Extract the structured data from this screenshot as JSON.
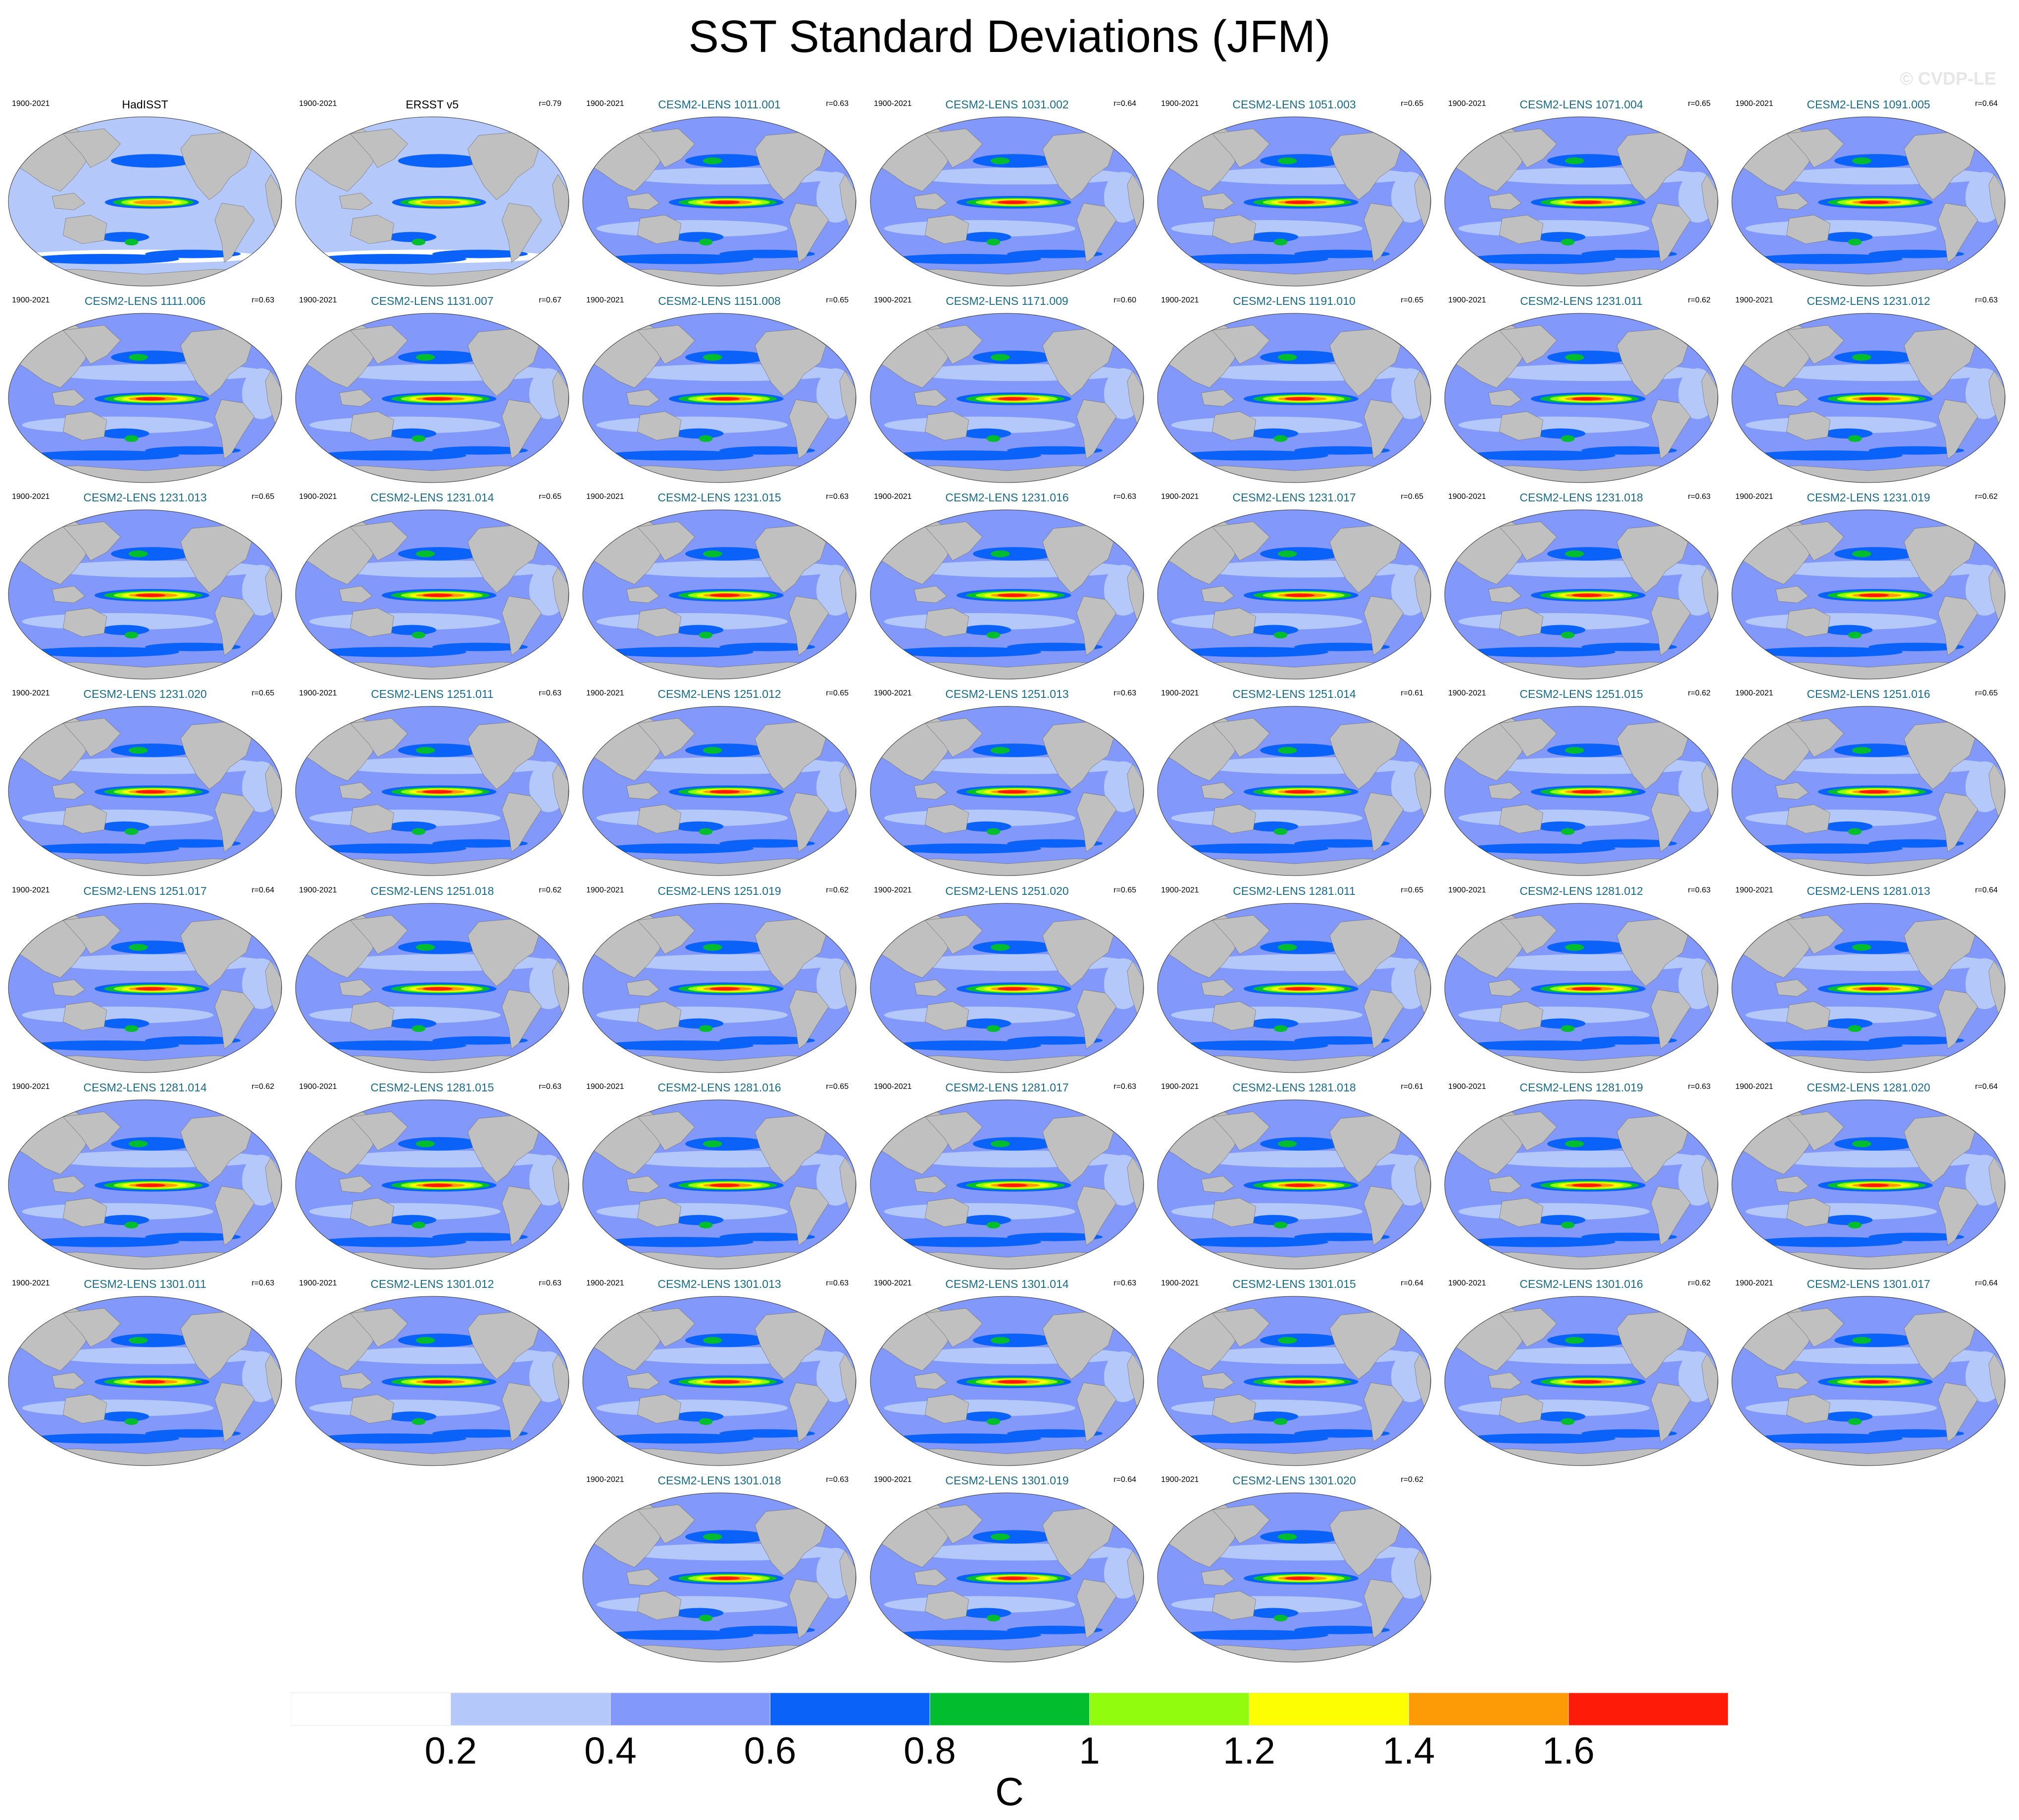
{
  "title": "SST Standard Deviations (JFM)",
  "watermark": "© CVDP-LE",
  "colors": {
    "ocean_bins": [
      "#ffffff",
      "#b4c8fa",
      "#8299fb",
      "#0b62f8",
      "#02be2e",
      "#92fc0e",
      "#fefe02",
      "#fd9b06",
      "#fe1b08"
    ],
    "land": "#c0c0c0",
    "model_title": "#1a6b8a"
  },
  "chart_data": {
    "type": "heatmap",
    "variable": "SST Standard Deviations",
    "season": "JFM",
    "colorbar": {
      "levels": [
        0.2,
        0.4,
        0.6,
        0.8,
        1,
        1.2,
        1.4,
        1.6
      ],
      "tick_labels": [
        "0.2",
        "0.4",
        "0.6",
        "0.8",
        "1",
        "1.2",
        "1.4",
        "1.6"
      ],
      "units": "C"
    },
    "panels": [
      {
        "name": "HadISST",
        "period": "1900-2021",
        "r": "",
        "observed": true
      },
      {
        "name": "ERSST v5",
        "period": "1900-2021",
        "r": "r=0.79",
        "observed": true
      },
      {
        "name": "CESM2-LENS 1011.001",
        "period": "1900-2021",
        "r": "r=0.63"
      },
      {
        "name": "CESM2-LENS 1031.002",
        "period": "1900-2021",
        "r": "r=0.64"
      },
      {
        "name": "CESM2-LENS 1051.003",
        "period": "1900-2021",
        "r": "r=0.65"
      },
      {
        "name": "CESM2-LENS 1071.004",
        "period": "1900-2021",
        "r": "r=0.65"
      },
      {
        "name": "CESM2-LENS 1091.005",
        "period": "1900-2021",
        "r": "r=0.64"
      },
      {
        "name": "CESM2-LENS 1111.006",
        "period": "1900-2021",
        "r": "r=0.63"
      },
      {
        "name": "CESM2-LENS 1131.007",
        "period": "1900-2021",
        "r": "r=0.67"
      },
      {
        "name": "CESM2-LENS 1151.008",
        "period": "1900-2021",
        "r": "r=0.65"
      },
      {
        "name": "CESM2-LENS 1171.009",
        "period": "1900-2021",
        "r": "r=0.60"
      },
      {
        "name": "CESM2-LENS 1191.010",
        "period": "1900-2021",
        "r": "r=0.65"
      },
      {
        "name": "CESM2-LENS 1231.011",
        "period": "1900-2021",
        "r": "r=0.62"
      },
      {
        "name": "CESM2-LENS 1231.012",
        "period": "1900-2021",
        "r": "r=0.63"
      },
      {
        "name": "CESM2-LENS 1231.013",
        "period": "1900-2021",
        "r": "r=0.65"
      },
      {
        "name": "CESM2-LENS 1231.014",
        "period": "1900-2021",
        "r": "r=0.65"
      },
      {
        "name": "CESM2-LENS 1231.015",
        "period": "1900-2021",
        "r": "r=0.63"
      },
      {
        "name": "CESM2-LENS 1231.016",
        "period": "1900-2021",
        "r": "r=0.63"
      },
      {
        "name": "CESM2-LENS 1231.017",
        "period": "1900-2021",
        "r": "r=0.65"
      },
      {
        "name": "CESM2-LENS 1231.018",
        "period": "1900-2021",
        "r": "r=0.63"
      },
      {
        "name": "CESM2-LENS 1231.019",
        "period": "1900-2021",
        "r": "r=0.62"
      },
      {
        "name": "CESM2-LENS 1231.020",
        "period": "1900-2021",
        "r": "r=0.65"
      },
      {
        "name": "CESM2-LENS 1251.011",
        "period": "1900-2021",
        "r": "r=0.63"
      },
      {
        "name": "CESM2-LENS 1251.012",
        "period": "1900-2021",
        "r": "r=0.65"
      },
      {
        "name": "CESM2-LENS 1251.013",
        "period": "1900-2021",
        "r": "r=0.63"
      },
      {
        "name": "CESM2-LENS 1251.014",
        "period": "1900-2021",
        "r": "r=0.61"
      },
      {
        "name": "CESM2-LENS 1251.015",
        "period": "1900-2021",
        "r": "r=0.62"
      },
      {
        "name": "CESM2-LENS 1251.016",
        "period": "1900-2021",
        "r": "r=0.65"
      },
      {
        "name": "CESM2-LENS 1251.017",
        "period": "1900-2021",
        "r": "r=0.64"
      },
      {
        "name": "CESM2-LENS 1251.018",
        "period": "1900-2021",
        "r": "r=0.62"
      },
      {
        "name": "CESM2-LENS 1251.019",
        "period": "1900-2021",
        "r": "r=0.62"
      },
      {
        "name": "CESM2-LENS 1251.020",
        "period": "1900-2021",
        "r": "r=0.65"
      },
      {
        "name": "CESM2-LENS 1281.011",
        "period": "1900-2021",
        "r": "r=0.65"
      },
      {
        "name": "CESM2-LENS 1281.012",
        "period": "1900-2021",
        "r": "r=0.63"
      },
      {
        "name": "CESM2-LENS 1281.013",
        "period": "1900-2021",
        "r": "r=0.64"
      },
      {
        "name": "CESM2-LENS 1281.014",
        "period": "1900-2021",
        "r": "r=0.62"
      },
      {
        "name": "CESM2-LENS 1281.015",
        "period": "1900-2021",
        "r": "r=0.63"
      },
      {
        "name": "CESM2-LENS 1281.016",
        "period": "1900-2021",
        "r": "r=0.65"
      },
      {
        "name": "CESM2-LENS 1281.017",
        "period": "1900-2021",
        "r": "r=0.63"
      },
      {
        "name": "CESM2-LENS 1281.018",
        "period": "1900-2021",
        "r": "r=0.61"
      },
      {
        "name": "CESM2-LENS 1281.019",
        "period": "1900-2021",
        "r": "r=0.63"
      },
      {
        "name": "CESM2-LENS 1281.020",
        "period": "1900-2021",
        "r": "r=0.64"
      },
      {
        "name": "CESM2-LENS 1301.011",
        "period": "1900-2021",
        "r": "r=0.63"
      },
      {
        "name": "CESM2-LENS 1301.012",
        "period": "1900-2021",
        "r": "r=0.63"
      },
      {
        "name": "CESM2-LENS 1301.013",
        "period": "1900-2021",
        "r": "r=0.63"
      },
      {
        "name": "CESM2-LENS 1301.014",
        "period": "1900-2021",
        "r": "r=0.63"
      },
      {
        "name": "CESM2-LENS 1301.015",
        "period": "1900-2021",
        "r": "r=0.64"
      },
      {
        "name": "CESM2-LENS 1301.016",
        "period": "1900-2021",
        "r": "r=0.62"
      },
      {
        "name": "CESM2-LENS 1301.017",
        "period": "1900-2021",
        "r": "r=0.64"
      },
      {
        "name": "CESM2-LENS 1301.018",
        "period": "1900-2021",
        "r": "r=0.63"
      },
      {
        "name": "CESM2-LENS 1301.019",
        "period": "1900-2021",
        "r": "r=0.64"
      },
      {
        "name": "CESM2-LENS 1301.020",
        "period": "1900-2021",
        "r": "r=0.62"
      }
    ]
  }
}
